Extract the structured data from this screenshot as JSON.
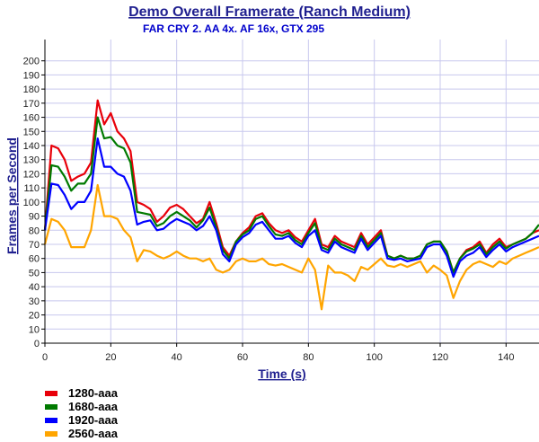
{
  "chart_data": {
    "type": "line",
    "title": "Demo Overall Framerate (Ranch Medium)",
    "subtitle": "FAR CRY 2. AA 4x. AF 16x,   GTX 295",
    "xlabel": "Time (s)",
    "ylabel": "Frames per Second",
    "xlim": [
      0,
      150
    ],
    "ylim": [
      0,
      210
    ],
    "xticks": [
      0,
      20,
      40,
      60,
      80,
      100,
      120,
      140
    ],
    "yticks": [
      0,
      10,
      20,
      30,
      40,
      50,
      60,
      70,
      80,
      90,
      100,
      110,
      120,
      130,
      140,
      150,
      160,
      170,
      180,
      190,
      200
    ],
    "grid": true,
    "legend_position": "bottom-left",
    "x": [
      0,
      2,
      4,
      6,
      8,
      10,
      12,
      14,
      16,
      18,
      20,
      22,
      24,
      26,
      28,
      30,
      32,
      34,
      36,
      38,
      40,
      42,
      44,
      46,
      48,
      50,
      52,
      54,
      56,
      58,
      60,
      62,
      64,
      66,
      68,
      70,
      72,
      74,
      76,
      78,
      80,
      82,
      84,
      86,
      88,
      90,
      92,
      94,
      96,
      98,
      100,
      102,
      104,
      106,
      108,
      110,
      112,
      114,
      116,
      118,
      120,
      122,
      124,
      126,
      128,
      130,
      132,
      134,
      136,
      138,
      140,
      142,
      144,
      146,
      148,
      150
    ],
    "series": [
      {
        "name": "1280-aaa",
        "color": "#e8000a",
        "values": [
          80,
          140,
          138,
          130,
          115,
          118,
          120,
          128,
          172,
          155,
          163,
          150,
          145,
          136,
          100,
          98,
          95,
          86,
          90,
          96,
          98,
          95,
          90,
          85,
          88,
          100,
          85,
          68,
          62,
          72,
          78,
          82,
          90,
          92,
          85,
          80,
          78,
          80,
          75,
          72,
          80,
          88,
          70,
          68,
          76,
          72,
          70,
          68,
          78,
          70,
          75,
          80,
          62,
          60,
          62,
          60,
          60,
          62,
          70,
          72,
          72,
          65,
          50,
          60,
          66,
          68,
          72,
          64,
          70,
          74,
          68,
          70,
          72,
          74,
          78,
          80
        ]
      },
      {
        "name": "1680-aaa",
        "color": "#007a00",
        "values": [
          80,
          126,
          125,
          118,
          108,
          113,
          113,
          120,
          160,
          145,
          146,
          140,
          138,
          128,
          93,
          92,
          91,
          83,
          85,
          90,
          93,
          90,
          87,
          82,
          87,
          96,
          82,
          66,
          60,
          72,
          77,
          80,
          88,
          90,
          83,
          77,
          76,
          78,
          73,
          70,
          78,
          85,
          68,
          66,
          74,
          70,
          68,
          66,
          76,
          68,
          73,
          78,
          62,
          60,
          62,
          60,
          60,
          62,
          70,
          72,
          72,
          65,
          50,
          60,
          65,
          67,
          70,
          63,
          68,
          72,
          67,
          70,
          72,
          74,
          78,
          84
        ]
      },
      {
        "name": "1920-aaa",
        "color": "#0000ff",
        "values": [
          80,
          113,
          112,
          105,
          95,
          100,
          100,
          108,
          145,
          125,
          125,
          120,
          118,
          108,
          84,
          86,
          87,
          80,
          81,
          85,
          88,
          86,
          84,
          80,
          83,
          90,
          80,
          63,
          58,
          70,
          75,
          78,
          84,
          86,
          80,
          74,
          74,
          76,
          71,
          68,
          76,
          80,
          66,
          64,
          72,
          68,
          66,
          64,
          74,
          66,
          71,
          76,
          60,
          59,
          60,
          58,
          59,
          60,
          68,
          70,
          70,
          62,
          47,
          58,
          62,
          64,
          68,
          61,
          66,
          70,
          65,
          68,
          70,
          72,
          74,
          76
        ]
      },
      {
        "name": "2560-aaa",
        "color": "#ffa500",
        "values": [
          70,
          88,
          86,
          80,
          68,
          68,
          68,
          80,
          112,
          90,
          90,
          88,
          80,
          75,
          58,
          66,
          65,
          62,
          60,
          62,
          65,
          62,
          60,
          60,
          58,
          60,
          52,
          50,
          52,
          58,
          60,
          58,
          58,
          60,
          56,
          55,
          56,
          54,
          52,
          50,
          60,
          52,
          24,
          55,
          50,
          50,
          48,
          44,
          54,
          52,
          56,
          60,
          55,
          54,
          56,
          54,
          56,
          58,
          50,
          55,
          52,
          48,
          32,
          44,
          52,
          56,
          58,
          56,
          54,
          58,
          56,
          60,
          62,
          64,
          66,
          68
        ]
      }
    ]
  }
}
